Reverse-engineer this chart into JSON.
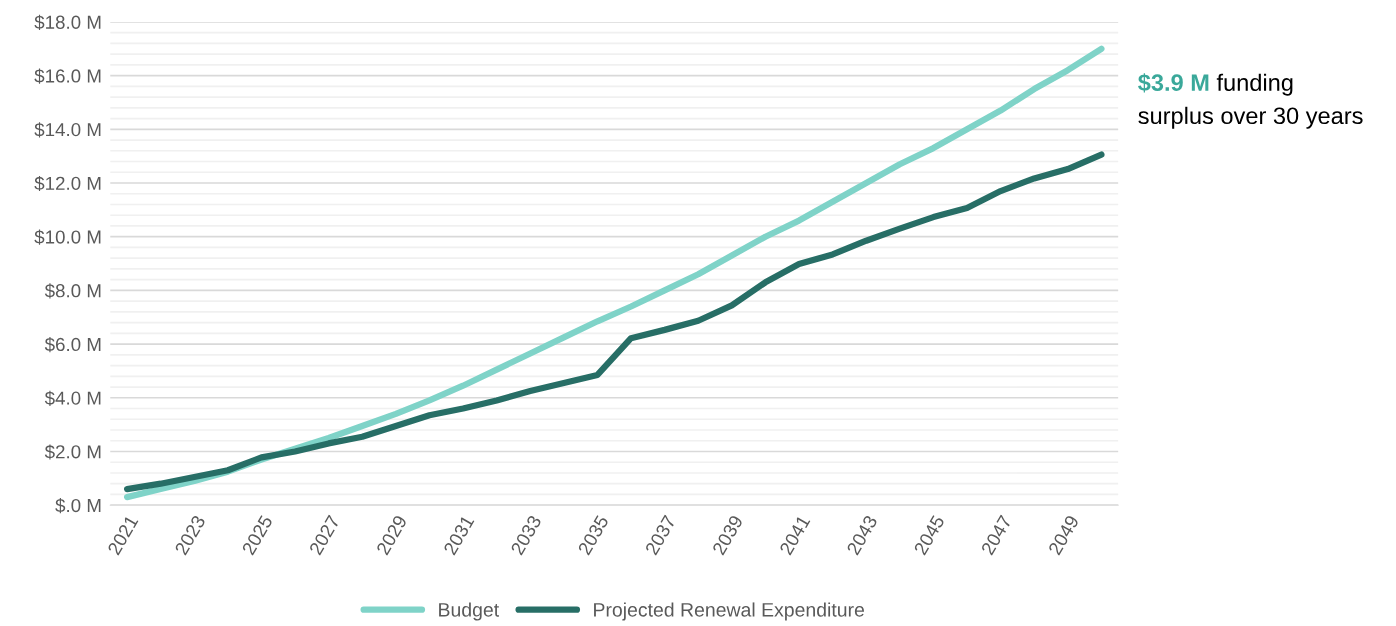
{
  "chart_data": {
    "type": "line",
    "x": [
      2021,
      2022,
      2023,
      2024,
      2025,
      2026,
      2027,
      2028,
      2029,
      2030,
      2031,
      2032,
      2033,
      2034,
      2035,
      2036,
      2037,
      2038,
      2039,
      2040,
      2041,
      2042,
      2043,
      2044,
      2045,
      2046,
      2047,
      2048,
      2049,
      2050
    ],
    "series": [
      {
        "name": "Budget",
        "color": "#7fd3c8",
        "values": [
          0.3,
          0.6,
          0.9,
          1.25,
          1.7,
          2.1,
          2.5,
          2.95,
          3.4,
          3.9,
          4.45,
          5.05,
          5.65,
          6.25,
          6.85,
          7.4,
          8.0,
          8.6,
          9.3,
          10.0,
          10.6,
          11.3,
          12.0,
          12.7,
          13.3,
          14.0,
          14.7,
          15.5,
          16.2,
          17.0
        ]
      },
      {
        "name": "Projected Renewal Expenditure",
        "color": "#276e66",
        "values": [
          0.6,
          0.8,
          1.05,
          1.3,
          1.78,
          2.0,
          2.3,
          2.55,
          2.95,
          3.35,
          3.6,
          3.9,
          4.25,
          4.55,
          4.85,
          6.22,
          6.53,
          6.87,
          7.44,
          8.3,
          8.98,
          9.34,
          9.85,
          10.3,
          10.73,
          11.07,
          11.7,
          12.17,
          12.52,
          13.06
        ]
      }
    ],
    "xlim": [
      2020.5,
      2050.5
    ],
    "xticks": [
      2021,
      2023,
      2025,
      2027,
      2029,
      2031,
      2033,
      2035,
      2037,
      2039,
      2041,
      2043,
      2045,
      2047,
      2049
    ],
    "ylim": [
      0,
      18
    ],
    "yticks": [
      {
        "value": 0,
        "label": "$.0 M"
      },
      {
        "value": 0.4,
        "label": null
      },
      {
        "value": 0.8,
        "label": null
      },
      {
        "value": 1.2,
        "label": null
      },
      {
        "value": 1.6,
        "label": null
      },
      {
        "value": 2,
        "label": "$2.0 M"
      },
      {
        "value": 2.4,
        "label": null
      },
      {
        "value": 2.8,
        "label": null
      },
      {
        "value": 3.2,
        "label": null
      },
      {
        "value": 3.6,
        "label": null
      },
      {
        "value": 4,
        "label": "$4.0 M"
      },
      {
        "value": 4.4,
        "label": null
      },
      {
        "value": 4.8,
        "label": null
      },
      {
        "value": 5.2,
        "label": null
      },
      {
        "value": 5.6,
        "label": null
      },
      {
        "value": 6,
        "label": "$6.0 M"
      },
      {
        "value": 6.4,
        "label": null
      },
      {
        "value": 6.8,
        "label": null
      },
      {
        "value": 7.2,
        "label": null
      },
      {
        "value": 7.6,
        "label": null
      },
      {
        "value": 8,
        "label": "$8.0 M"
      },
      {
        "value": 8.4,
        "label": null
      },
      {
        "value": 8.8,
        "label": null
      },
      {
        "value": 9.2,
        "label": null
      },
      {
        "value": 9.6,
        "label": null
      },
      {
        "value": 10,
        "label": "$10.0 M"
      },
      {
        "value": 10.4,
        "label": null
      },
      {
        "value": 10.8,
        "label": null
      },
      {
        "value": 11.2,
        "label": null
      },
      {
        "value": 11.6,
        "label": null
      },
      {
        "value": 12,
        "label": "$12.0 M"
      },
      {
        "value": 12.4,
        "label": null
      },
      {
        "value": 12.8,
        "label": null
      },
      {
        "value": 13.2,
        "label": null
      },
      {
        "value": 13.6,
        "label": null
      },
      {
        "value": 14,
        "label": "$14.0 M"
      },
      {
        "value": 14.4,
        "label": null
      },
      {
        "value": 14.8,
        "label": null
      },
      {
        "value": 15.2,
        "label": null
      },
      {
        "value": 15.6,
        "label": null
      },
      {
        "value": 16,
        "label": "$16.0 M"
      },
      {
        "value": 16.4,
        "label": null
      },
      {
        "value": 16.8,
        "label": null
      },
      {
        "value": 17.2,
        "label": null
      },
      {
        "value": 17.6,
        "label": null
      },
      {
        "value": 18,
        "label": "$18.0 M"
      }
    ],
    "grid": "y",
    "legend": "bottom",
    "marker": "none",
    "line_style": "solid",
    "annotations": [
      "$3.9 M",
      "funding",
      "surplus over 30 years"
    ]
  }
}
